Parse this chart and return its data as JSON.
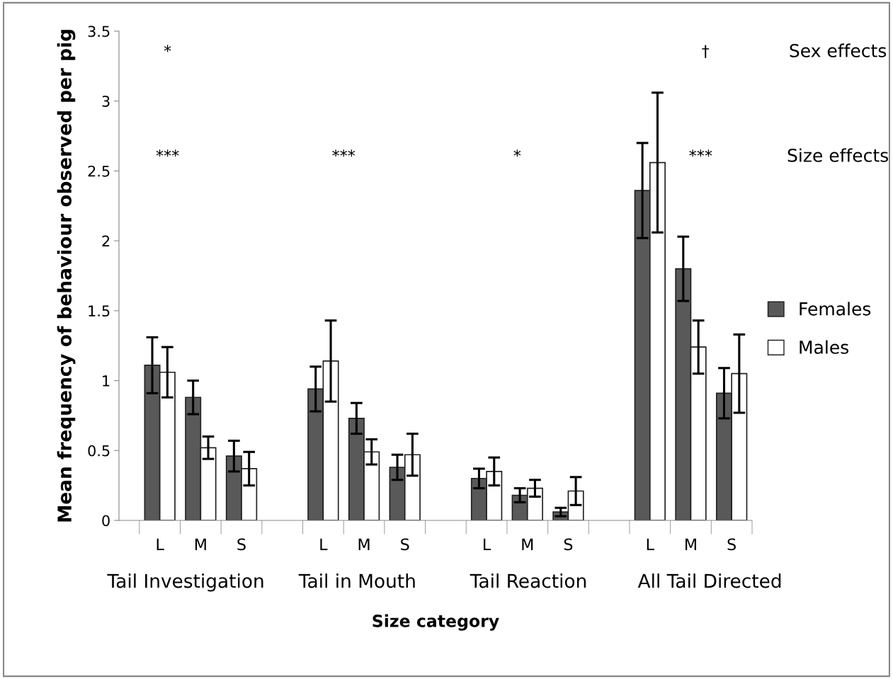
{
  "chart_data": {
    "type": "bar",
    "xlabel": "Size category",
    "ylabel": "Mean frequency of behaviour observed per pig",
    "categories": [
      "L",
      "M",
      "S",
      null,
      "L",
      "M",
      "S",
      null,
      "L",
      "M",
      "S",
      null,
      "L",
      "M",
      "S"
    ],
    "series": [
      {
        "name": "Females",
        "color": "#595959",
        "values": [
          1.11,
          0.88,
          0.46,
          null,
          0.94,
          0.73,
          0.38,
          null,
          0.3,
          0.18,
          0.06,
          null,
          2.36,
          1.8,
          0.91
        ],
        "errors": [
          0.2,
          0.12,
          0.11,
          null,
          0.16,
          0.11,
          0.09,
          null,
          0.07,
          0.05,
          0.03,
          null,
          0.34,
          0.23,
          0.18
        ]
      },
      {
        "name": "Males",
        "color": "#ffffff",
        "values": [
          1.06,
          0.52,
          0.37,
          null,
          1.14,
          0.49,
          0.47,
          null,
          0.35,
          0.23,
          0.21,
          null,
          2.56,
          1.24,
          1.05
        ],
        "errors": [
          0.18,
          0.08,
          0.12,
          null,
          0.29,
          0.09,
          0.15,
          null,
          0.1,
          0.06,
          0.1,
          null,
          0.5,
          0.19,
          0.28
        ]
      }
    ],
    "ylim": [
      0,
      3.5
    ],
    "yticks": [
      0,
      0.5,
      1,
      1.5,
      2,
      2.5,
      3,
      3.5
    ],
    "grid": false,
    "legend": "right",
    "annotations": [
      "*",
      "†",
      "Sex effects",
      "***",
      "***",
      "*",
      "***",
      "Size effects",
      "Tail Investigation",
      "Tail in Mouth",
      "Tail Reaction",
      "All Tail Directed"
    ]
  }
}
